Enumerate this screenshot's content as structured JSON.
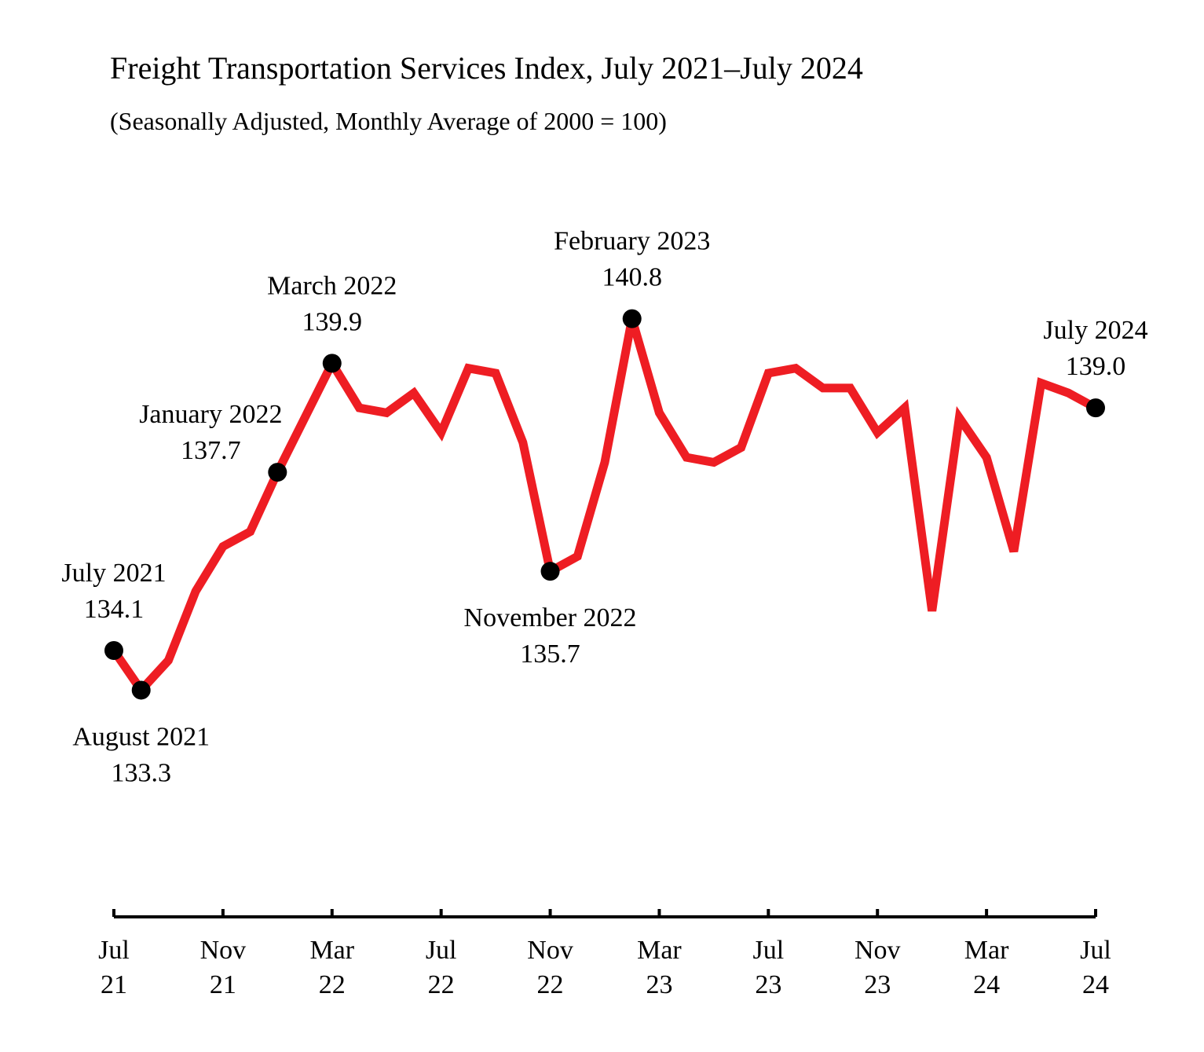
{
  "chart_data": {
    "type": "line",
    "title": "Freight Transportation Services Index, July 2021–July 2024",
    "subtitle": "(Seasonally Adjusted, Monthly Average of 2000 = 100)",
    "xlabel": "",
    "ylabel": "",
    "grid": false,
    "legend": "none",
    "ylim": [
      129.5,
      142.0
    ],
    "colors": {
      "line": "#ee1d23",
      "markers": "#000000",
      "axis": "#000000"
    },
    "x": [
      "2021-07",
      "2021-08",
      "2021-09",
      "2021-10",
      "2021-11",
      "2021-12",
      "2022-01",
      "2022-02",
      "2022-03",
      "2022-04",
      "2022-05",
      "2022-06",
      "2022-07",
      "2022-08",
      "2022-09",
      "2022-10",
      "2022-11",
      "2022-12",
      "2023-01",
      "2023-02",
      "2023-03",
      "2023-04",
      "2023-05",
      "2023-06",
      "2023-07",
      "2023-08",
      "2023-09",
      "2023-10",
      "2023-11",
      "2023-12",
      "2024-01",
      "2024-02",
      "2024-03",
      "2024-04",
      "2024-05",
      "2024-06",
      "2024-07"
    ],
    "series": [
      {
        "values": [
          134.1,
          133.3,
          133.9,
          135.3,
          136.2,
          136.5,
          137.7,
          138.8,
          139.9,
          139.0,
          138.9,
          139.3,
          138.5,
          139.8,
          139.7,
          138.3,
          135.7,
          136.0,
          137.9,
          140.8,
          138.9,
          138.0,
          137.9,
          138.2,
          139.7,
          139.8,
          139.4,
          139.4,
          138.5,
          139.0,
          134.9,
          138.8,
          138.0,
          136.1,
          139.5,
          139.3,
          139.0
        ]
      }
    ],
    "highlighted_points": [
      {
        "index": 0,
        "label": "July 2021",
        "value_label": "134.1",
        "position": "above"
      },
      {
        "index": 1,
        "label": "August 2021",
        "value_label": "133.3",
        "position": "below"
      },
      {
        "index": 6,
        "label": "January 2022",
        "value_label": "137.7",
        "position": "above-left"
      },
      {
        "index": 8,
        "label": "March 2022",
        "value_label": "139.9",
        "position": "above"
      },
      {
        "index": 16,
        "label": "November 2022",
        "value_label": "135.7",
        "position": "below"
      },
      {
        "index": 19,
        "label": "February 2023",
        "value_label": "140.8",
        "position": "above"
      },
      {
        "index": 36,
        "label": "July 2024",
        "value_label": "139.0",
        "position": "above"
      }
    ],
    "x_ticks": [
      {
        "index": 0,
        "line1": "Jul",
        "line2": "21"
      },
      {
        "index": 4,
        "line1": "Nov",
        "line2": "21"
      },
      {
        "index": 8,
        "line1": "Mar",
        "line2": "22"
      },
      {
        "index": 12,
        "line1": "Jul",
        "line2": "22"
      },
      {
        "index": 16,
        "line1": "Nov",
        "line2": "22"
      },
      {
        "index": 20,
        "line1": "Mar",
        "line2": "23"
      },
      {
        "index": 24,
        "line1": "Jul",
        "line2": "23"
      },
      {
        "index": 28,
        "line1": "Nov",
        "line2": "23"
      },
      {
        "index": 32,
        "line1": "Mar",
        "line2": "24"
      },
      {
        "index": 36,
        "line1": "Jul",
        "line2": "24"
      }
    ]
  }
}
